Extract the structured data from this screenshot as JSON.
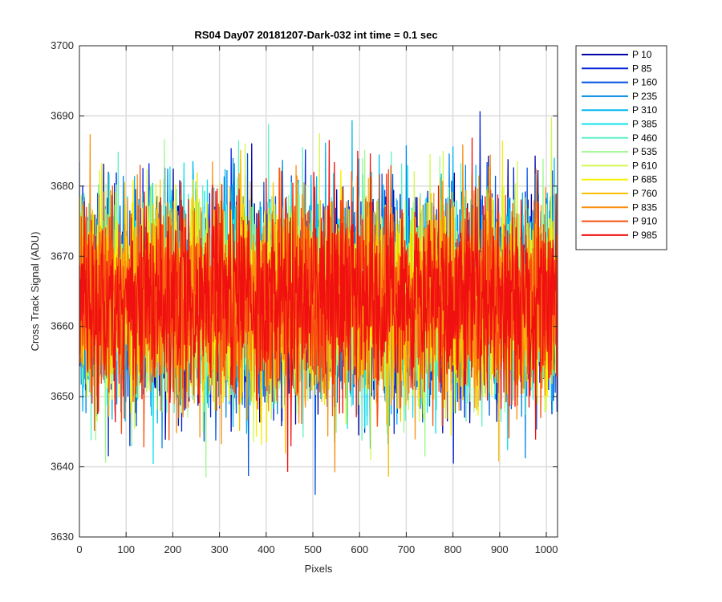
{
  "chart_data": {
    "type": "line",
    "title": "RS04 Day07 20181207-Dark-032 int time = 0.1 sec",
    "xlabel": "Pixels",
    "ylabel": "Cross Track Signal (ADU)",
    "xlim": [
      0,
      1024
    ],
    "ylim": [
      3630,
      3700
    ],
    "xticks": [
      0,
      100,
      200,
      300,
      400,
      500,
      600,
      700,
      800,
      900,
      1000
    ],
    "yticks": [
      3630,
      3640,
      3650,
      3660,
      3670,
      3680,
      3690,
      3700
    ],
    "grid": true,
    "legend_position": "outside-right",
    "n_points": 1024,
    "mean": 3664,
    "noise_std": 7,
    "series": [
      {
        "name": "P 10",
        "color": "#0000A6"
      },
      {
        "name": "P 85",
        "color": "#0020D8"
      },
      {
        "name": "P 160",
        "color": "#0055E0"
      },
      {
        "name": "P 235",
        "color": "#0088E8"
      },
      {
        "name": "P 310",
        "color": "#00B8F0"
      },
      {
        "name": "P 385",
        "color": "#10E0E8"
      },
      {
        "name": "P 460",
        "color": "#60F0C8"
      },
      {
        "name": "P 535",
        "color": "#A0F890"
      },
      {
        "name": "P 610",
        "color": "#D0F850"
      },
      {
        "name": "P 685",
        "color": "#F8F000"
      },
      {
        "name": "P 760",
        "color": "#F8C000"
      },
      {
        "name": "P 835",
        "color": "#F89010"
      },
      {
        "name": "P 910",
        "color": "#F85010"
      },
      {
        "name": "P 985",
        "color": "#F01010"
      }
    ]
  }
}
